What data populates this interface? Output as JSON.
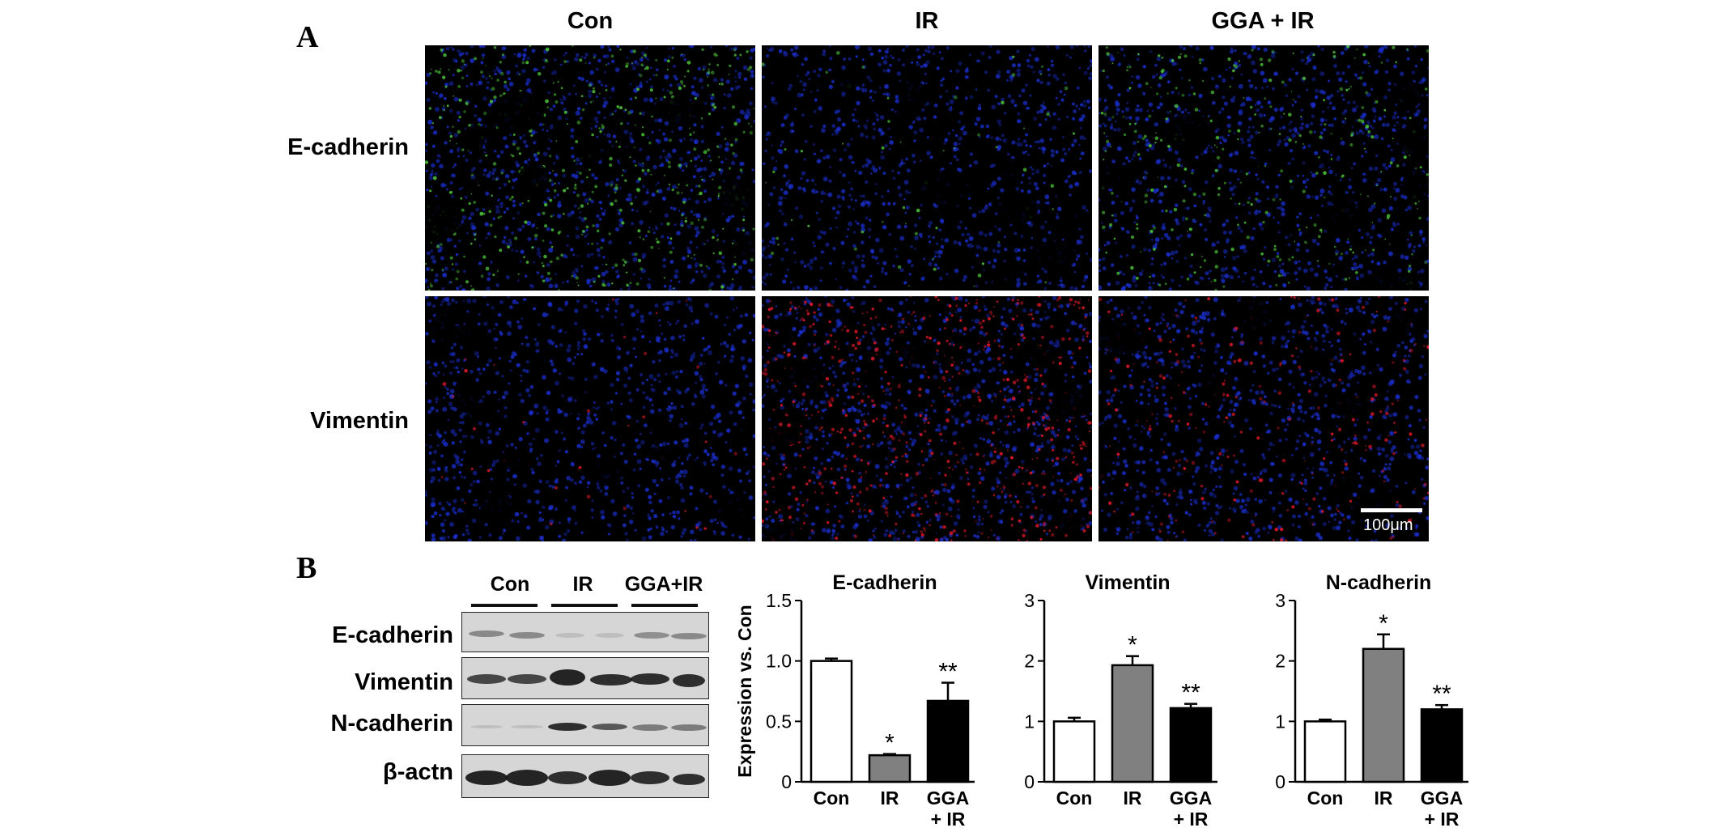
{
  "panels": {
    "a": "A",
    "b": "B"
  },
  "panel_a": {
    "columns": [
      "Con",
      "IR",
      "GGA + IR"
    ],
    "rows": [
      "E-cadherin",
      "Vimentin"
    ],
    "scale_bar_label": "100μm"
  },
  "panel_b": {
    "blot": {
      "lanes": [
        "Con",
        "IR",
        "GGA+IR"
      ],
      "rows": [
        "E-cadherin",
        "Vimentin",
        "N-cadherin",
        "β-actn"
      ]
    }
  },
  "colors": {
    "con_bar": "#ffffff",
    "ir_bar": "#808080",
    "gga_bar": "#000000",
    "nucleus": "#1a2fd0",
    "ecad": "#4cc43a",
    "vim": "#e0182a"
  },
  "chart_data": [
    {
      "type": "bar",
      "title": "E-cadherin",
      "ylabel": "Expression vs. Con",
      "categories": [
        "Con",
        "IR",
        "GGA\n+ IR"
      ],
      "values": [
        1.0,
        0.22,
        0.67
      ],
      "errors": [
        0.02,
        0.01,
        0.15
      ],
      "significance": [
        "",
        "*",
        "**"
      ],
      "ylim": [
        0,
        1.5
      ],
      "yticks": [
        "0",
        "0.5",
        "1.0",
        "1.5"
      ]
    },
    {
      "type": "bar",
      "title": "Vimentin",
      "ylabel": "",
      "categories": [
        "Con",
        "IR",
        "GGA\n+ IR"
      ],
      "values": [
        1.0,
        1.93,
        1.22
      ],
      "errors": [
        0.06,
        0.15,
        0.07
      ],
      "significance": [
        "",
        "*",
        "**"
      ],
      "ylim": [
        0,
        3
      ],
      "yticks": [
        "0",
        "1",
        "2",
        "3"
      ]
    },
    {
      "type": "bar",
      "title": "N-cadherin",
      "ylabel": "",
      "categories": [
        "Con",
        "IR",
        "GGA\n+ IR"
      ],
      "values": [
        1.0,
        2.2,
        1.2
      ],
      "errors": [
        0.03,
        0.24,
        0.07
      ],
      "significance": [
        "",
        "*",
        "**"
      ],
      "ylim": [
        0,
        3
      ],
      "yticks": [
        "0",
        "1",
        "2",
        "3"
      ]
    }
  ]
}
